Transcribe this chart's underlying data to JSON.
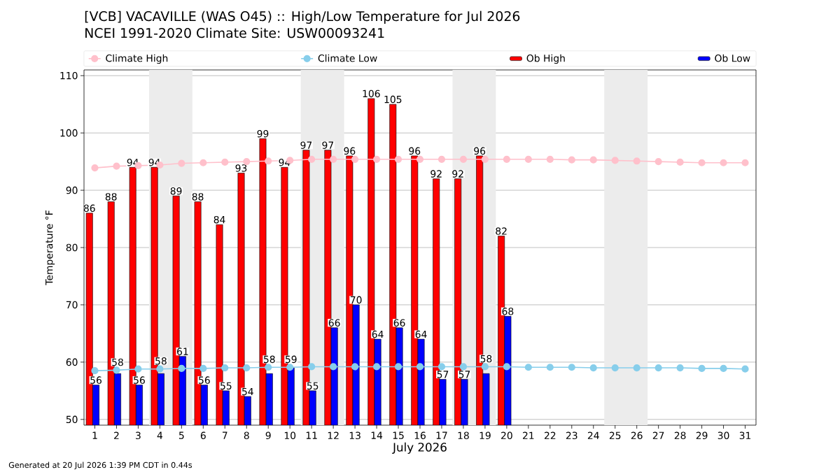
{
  "chart_data": {
    "type": "bar",
    "title": "[VCB] VACAVILLE (WAS O45) :: High/Low Temperature for Jul 2026",
    "subtitle": "NCEI 1991-2020 Climate Site: USW00093241",
    "xlabel": "July 2026",
    "ylabel": "Temperature °F",
    "x": [
      1,
      2,
      3,
      4,
      5,
      6,
      7,
      8,
      9,
      10,
      11,
      12,
      13,
      14,
      15,
      16,
      17,
      18,
      19,
      20,
      21,
      22,
      23,
      24,
      25,
      26,
      27,
      28,
      29,
      30,
      31
    ],
    "series": [
      {
        "name": "Climate High",
        "type": "line",
        "color": "#ffc0cb",
        "values": [
          93.9,
          94.2,
          94.3,
          94.4,
          94.7,
          94.8,
          94.9,
          95.0,
          95.1,
          95.2,
          95.4,
          95.4,
          95.4,
          95.4,
          95.4,
          95.4,
          95.4,
          95.4,
          95.4,
          95.4,
          95.4,
          95.4,
          95.3,
          95.3,
          95.2,
          95.1,
          95.0,
          94.9,
          94.8,
          94.8,
          94.8
        ]
      },
      {
        "name": "Climate Low",
        "type": "line",
        "color": "#87ceeb",
        "values": [
          58.5,
          58.6,
          58.8,
          58.8,
          58.9,
          58.9,
          59.0,
          59.0,
          59.1,
          59.1,
          59.2,
          59.2,
          59.2,
          59.2,
          59.2,
          59.2,
          59.2,
          59.2,
          59.2,
          59.2,
          59.1,
          59.1,
          59.1,
          59.0,
          59.0,
          59.0,
          59.0,
          59.0,
          58.9,
          58.9,
          58.8
        ]
      },
      {
        "name": "Ob High",
        "color": "#ff0000",
        "values": [
          86,
          88,
          94,
          94,
          89,
          88,
          84,
          93,
          99,
          94,
          97,
          97,
          96,
          106,
          105,
          96,
          92,
          92,
          96,
          82,
          null,
          null,
          null,
          null,
          null,
          null,
          null,
          null,
          null,
          null,
          null
        ],
        "value_labels": [
          "86",
          "88",
          "94",
          "94",
          "89",
          "88",
          "84",
          "93",
          "99",
          "94",
          "97",
          "97",
          "96",
          "106",
          "105",
          "96",
          "92",
          "92",
          "96",
          "82",
          null,
          null,
          null,
          null,
          null,
          null,
          null,
          null,
          null,
          null,
          null
        ]
      },
      {
        "name": "Ob Low",
        "color": "#0000ff",
        "values": [
          56,
          58,
          56,
          58,
          61,
          56,
          55,
          54,
          58,
          59,
          55,
          66,
          70,
          64,
          66,
          64,
          57,
          57,
          58,
          68,
          null,
          null,
          null,
          null,
          null,
          null,
          null,
          null,
          null,
          null,
          null
        ],
        "value_labels": [
          "56",
          "58",
          "56",
          "58",
          "61",
          "56",
          "55",
          "54",
          "58",
          "59",
          "55",
          "66",
          "70",
          "64",
          "66",
          "64",
          "57",
          "57",
          "58",
          "68",
          null,
          null,
          null,
          null,
          null,
          null,
          null,
          null,
          null,
          null,
          null
        ]
      }
    ],
    "xlim": [
      0.5,
      31.5
    ],
    "xticks": [
      1,
      2,
      3,
      4,
      5,
      6,
      7,
      8,
      9,
      10,
      11,
      12,
      13,
      14,
      15,
      16,
      17,
      18,
      19,
      20,
      21,
      22,
      23,
      24,
      25,
      26,
      27,
      28,
      29,
      30,
      31
    ],
    "ylim": [
      49,
      111
    ],
    "yticks": [
      50,
      60,
      70,
      80,
      90,
      100,
      110
    ],
    "bands": [
      {
        "axis": "x",
        "from": 3.5,
        "to": 5.5,
        "color": "#ececec"
      },
      {
        "axis": "x",
        "from": 10.5,
        "to": 12.5,
        "color": "#ececec"
      },
      {
        "axis": "x",
        "from": 17.5,
        "to": 19.5,
        "color": "#ececec"
      },
      {
        "axis": "x",
        "from": 24.5,
        "to": 26.5,
        "color": "#ececec"
      }
    ],
    "grid": "y",
    "legend": "top",
    "marker": "circle",
    "annotations": [
      "Generated at 20 Jul 2026 1:39 PM CDT in 0.44s"
    ]
  }
}
